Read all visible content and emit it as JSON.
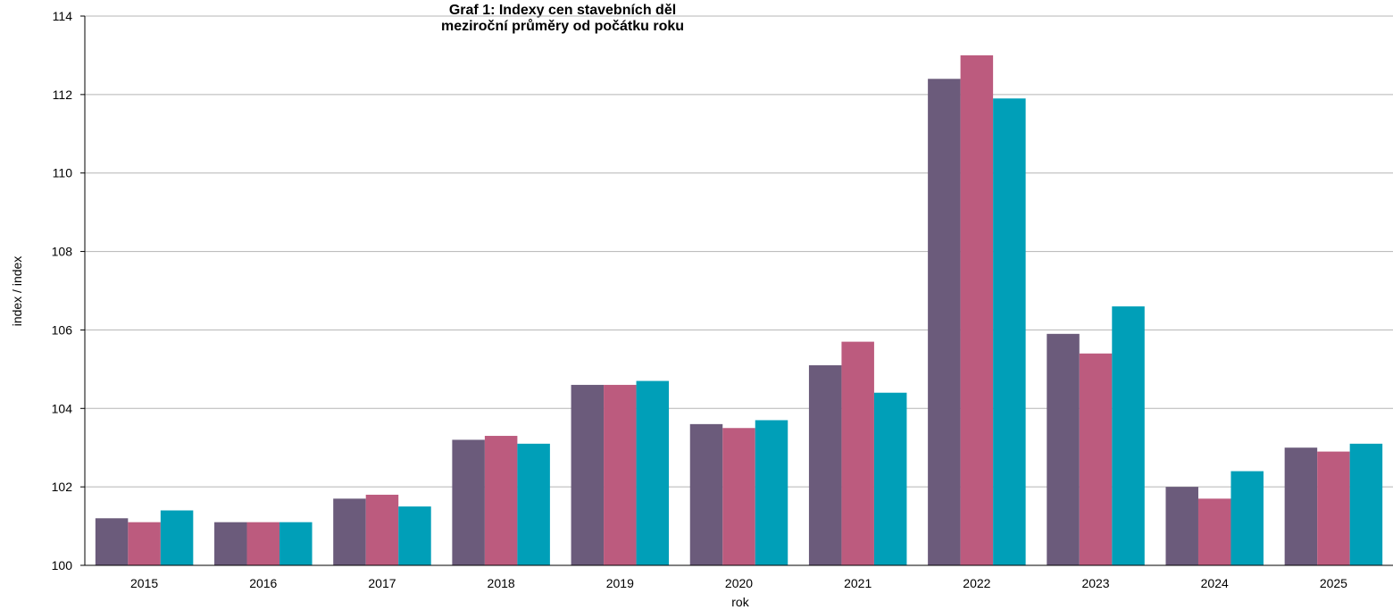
{
  "chart_data": {
    "type": "bar",
    "title": "Graf 1: Indexy cen stavebních děl",
    "subtitle": "meziroční průměry od počátku roku",
    "xlabel": "rok",
    "ylabel": "index / index",
    "ylim": [
      100,
      114
    ],
    "yticks": [
      "100",
      "102",
      "104",
      "106",
      "108",
      "110",
      "112",
      "114"
    ],
    "grid": true,
    "categories": [
      "2015",
      "2016",
      "2017",
      "2018",
      "2019",
      "2020",
      "2021",
      "2022",
      "2023",
      "2024",
      "2025"
    ],
    "series": [
      {
        "color": "#6b5b7b",
        "values": [
          101.2,
          101.1,
          101.7,
          103.2,
          104.6,
          103.6,
          105.1,
          112.4,
          105.9,
          102.0,
          103.0
        ]
      },
      {
        "color": "#bc5b7e",
        "values": [
          101.1,
          101.1,
          101.8,
          103.3,
          104.6,
          103.5,
          105.7,
          113.0,
          105.4,
          101.7,
          102.9
        ]
      },
      {
        "color": "#009fb8",
        "values": [
          101.4,
          101.1,
          101.5,
          103.1,
          104.7,
          103.7,
          104.4,
          111.9,
          106.6,
          102.4,
          103.1
        ]
      }
    ]
  }
}
